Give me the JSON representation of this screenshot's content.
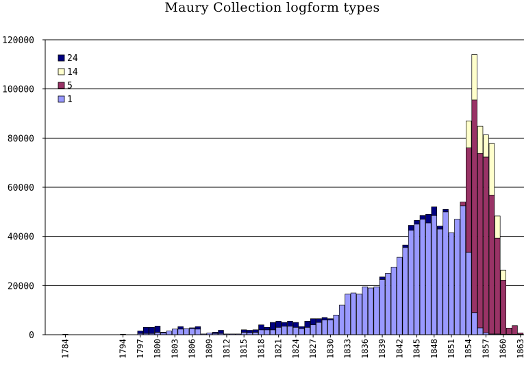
{
  "chart_data": {
    "type": "bar",
    "stacked": true,
    "title": "Maury Collection logform types",
    "xlabel": "",
    "ylabel": "",
    "ylim": [
      0,
      120000
    ],
    "yticks": [
      0,
      20000,
      40000,
      60000,
      80000,
      100000,
      120000
    ],
    "grid": "horizontal major gridlines",
    "legend_position": "top-left inside plot",
    "x": [
      1784,
      1794,
      1797,
      1798,
      1799,
      1800,
      1801,
      1802,
      1803,
      1804,
      1805,
      1806,
      1807,
      1808,
      1809,
      1810,
      1811,
      1812,
      1813,
      1814,
      1815,
      1816,
      1817,
      1818,
      1819,
      1820,
      1821,
      1822,
      1823,
      1824,
      1825,
      1826,
      1827,
      1828,
      1829,
      1830,
      1831,
      1832,
      1833,
      1834,
      1835,
      1836,
      1837,
      1838,
      1839,
      1840,
      1841,
      1842,
      1843,
      1844,
      1845,
      1846,
      1847,
      1848,
      1849,
      1850,
      1851,
      1852,
      1853,
      1854,
      1855,
      1856,
      1857,
      1858,
      1859,
      1860,
      1861,
      1862,
      1863
    ],
    "x_tick_labels": [
      "1784",
      "1794",
      "1797",
      "1800",
      "1803",
      "1806",
      "1809",
      "1812",
      "1815",
      "1818",
      "1821",
      "1824",
      "1827",
      "1830",
      "1833",
      "1836",
      "1839",
      "1842",
      "1845",
      "1848",
      "1851",
      "1854",
      "1857",
      "1860",
      "1863"
    ],
    "series": [
      {
        "name": "1",
        "color": "#9999ff",
        "values": [
          200,
          200,
          500,
          500,
          500,
          1000,
          700,
          1500,
          2300,
          2300,
          2500,
          2500,
          2300,
          300,
          700,
          500,
          500,
          300,
          300,
          300,
          1000,
          800,
          1000,
          2000,
          2000,
          2000,
          3000,
          3500,
          3500,
          3000,
          2500,
          3000,
          4000,
          5000,
          6000,
          6000,
          8000,
          12000,
          16500,
          17000,
          16500,
          19500,
          19000,
          19500,
          22500,
          25000,
          27500,
          31500,
          35500,
          42500,
          45000,
          47000,
          45500,
          48500,
          43000,
          50000,
          41500,
          47000,
          52500,
          33500,
          9000,
          2800,
          800,
          300,
          300,
          200,
          200,
          200,
          200
        ]
      },
      {
        "name": "5",
        "color": "#993366",
        "values": [
          0,
          0,
          0,
          0,
          0,
          0,
          0,
          0,
          0,
          0,
          0,
          0,
          0,
          0,
          0,
          0,
          0,
          0,
          0,
          0,
          0,
          0,
          0,
          0,
          0,
          0,
          0,
          0,
          0,
          0,
          0,
          0,
          0,
          0,
          0,
          0,
          0,
          0,
          0,
          0,
          0,
          0,
          0,
          0,
          0,
          0,
          0,
          0,
          0,
          0,
          0,
          0,
          0,
          0,
          0,
          0,
          0,
          0,
          1500,
          42500,
          86500,
          71000,
          71500,
          56500,
          39000,
          22000,
          2500,
          3500,
          500
        ]
      },
      {
        "name": "14",
        "color": "#ffffcc",
        "values": [
          0,
          0,
          0,
          0,
          0,
          0,
          0,
          0,
          0,
          0,
          0,
          0,
          0,
          0,
          0,
          0,
          0,
          0,
          0,
          0,
          0,
          0,
          0,
          0,
          0,
          0,
          0,
          0,
          0,
          0,
          0,
          0,
          0,
          0,
          0,
          0,
          0,
          0,
          0,
          0,
          0,
          0,
          0,
          0,
          0,
          0,
          0,
          0,
          0,
          0,
          0,
          0,
          0,
          0,
          0,
          0,
          0,
          0,
          0,
          11000,
          18500,
          11000,
          9000,
          21000,
          9000,
          4000,
          0,
          0,
          0
        ]
      },
      {
        "name": "24",
        "color": "#000080",
        "values": [
          0,
          0,
          1000,
          2500,
          2500,
          2500,
          300,
          0,
          0,
          1000,
          0,
          300,
          1000,
          0,
          0,
          500,
          1300,
          0,
          0,
          0,
          1000,
          1000,
          1000,
          2000,
          1000,
          3000,
          2500,
          1500,
          2000,
          2000,
          800,
          2500,
          2500,
          1500,
          1000,
          500,
          0,
          0,
          0,
          0,
          0,
          0,
          0,
          0,
          1000,
          0,
          0,
          0,
          1000,
          2000,
          1500,
          1500,
          3500,
          3500,
          1200,
          1000,
          0,
          0,
          0,
          0,
          0,
          0,
          0,
          0,
          0,
          0,
          0,
          0,
          0
        ]
      }
    ],
    "legend_order": [
      "24",
      "14",
      "5",
      "1"
    ]
  }
}
